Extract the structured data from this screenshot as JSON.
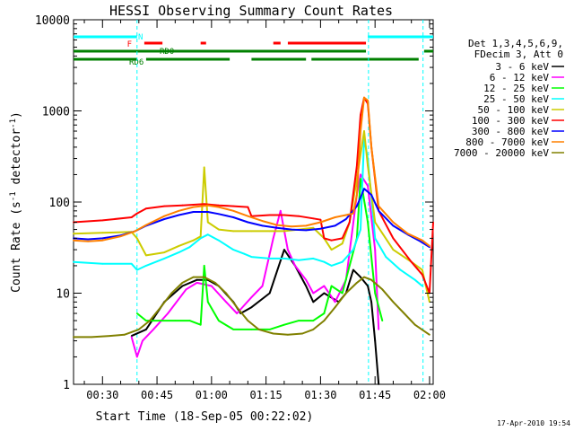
{
  "chart_data": {
    "type": "line",
    "title": "HESSI Observing Summary Count Rates",
    "xlabel": "Start Time (18-Sep-05 00:22:02)",
    "ylabel_main": "Count Rate (s",
    "ylabel_sup1": "-1",
    "ylabel_mid": " detector",
    "ylabel_sup2": "-1",
    "ylabel_end": ")",
    "y_scale": "log",
    "ylim": [
      1,
      10000
    ],
    "xlim_minutes": [
      22.03,
      121.0
    ],
    "x_tick_labels": [
      "00:30",
      "00:45",
      "01:00",
      "01:15",
      "01:30",
      "01:45",
      "02:00"
    ],
    "x_tick_minutes": [
      30,
      45,
      60,
      75,
      90,
      105,
      120
    ],
    "y_tick_labels": [
      "1",
      "10",
      "100",
      "1000",
      "10000"
    ],
    "y_tick_values": [
      1,
      10,
      100,
      1000,
      10000
    ],
    "timestamp": "17-Apr-2010 19:54",
    "legend_header": [
      "Det 1,3,4,5,6,9,",
      "FDecim 3, Att 0"
    ],
    "flags": [
      {
        "name": "N",
        "color": "#00ffff",
        "segments": [
          [
            22,
            39.5
          ],
          [
            103,
            121
          ]
        ]
      },
      {
        "name": "F",
        "color": "#ff0000",
        "segments": [
          [
            41.5,
            46.5
          ],
          [
            57,
            58.5
          ],
          [
            77,
            79
          ],
          [
            81,
            102.5
          ]
        ]
      },
      {
        "name": "RD0",
        "color": "#008000",
        "segments": [
          [
            22,
            102.5
          ],
          [
            118.5,
            121
          ]
        ]
      },
      {
        "name": "RD6",
        "color": "#008000",
        "segments": [
          [
            22,
            39.5
          ],
          [
            42,
            65
          ],
          [
            71,
            86
          ],
          [
            87.5,
            117
          ]
        ]
      }
    ],
    "vlines_minutes": [
      39.5,
      103.2,
      118.2
    ],
    "series": [
      {
        "name": "3 - 6 keV",
        "color": "#000000",
        "points": [
          [
            38,
            3.4
          ],
          [
            42,
            4
          ],
          [
            47,
            8
          ],
          [
            52,
            12
          ],
          [
            56,
            14
          ],
          [
            59,
            14
          ],
          [
            62,
            12
          ],
          [
            66,
            8
          ],
          [
            68,
            6
          ],
          [
            71,
            7
          ],
          [
            76,
            10
          ],
          [
            80,
            30
          ],
          [
            83,
            20
          ],
          [
            86,
            12
          ],
          [
            88,
            8
          ],
          [
            91,
            10
          ],
          [
            95,
            8
          ],
          [
            97,
            10
          ],
          [
            99,
            18
          ],
          [
            101,
            15
          ],
          [
            103,
            12
          ],
          [
            104,
            8
          ],
          [
            105,
            3
          ],
          [
            106,
            1
          ]
        ]
      },
      {
        "name": "6 - 12 keV",
        "color": "#ff00ff",
        "points": [
          [
            38,
            3.3
          ],
          [
            39.5,
            2
          ],
          [
            41,
            3
          ],
          [
            44,
            4
          ],
          [
            48,
            6
          ],
          [
            53,
            11
          ],
          [
            56,
            13
          ],
          [
            60,
            12
          ],
          [
            64,
            8
          ],
          [
            67,
            6
          ],
          [
            71,
            9
          ],
          [
            74,
            12
          ],
          [
            77,
            40
          ],
          [
            79,
            80
          ],
          [
            81,
            30
          ],
          [
            83,
            20
          ],
          [
            86,
            14
          ],
          [
            88,
            10
          ],
          [
            91,
            12
          ],
          [
            94,
            8
          ],
          [
            97,
            14
          ],
          [
            100,
            120
          ],
          [
            101,
            200
          ],
          [
            103,
            150
          ],
          [
            105,
            30
          ],
          [
            106,
            4
          ]
        ]
      },
      {
        "name": "12 - 25 keV",
        "color": "#00ff00",
        "points": [
          [
            39.5,
            6
          ],
          [
            42,
            5
          ],
          [
            46,
            5
          ],
          [
            50,
            5
          ],
          [
            54,
            5
          ],
          [
            57,
            4.5
          ],
          [
            58,
            20
          ],
          [
            59,
            8
          ],
          [
            62,
            5
          ],
          [
            66,
            4
          ],
          [
            71,
            4
          ],
          [
            76,
            4
          ],
          [
            80,
            4.5
          ],
          [
            84,
            5
          ],
          [
            88,
            5
          ],
          [
            91,
            6
          ],
          [
            93,
            12
          ],
          [
            96,
            10
          ],
          [
            98,
            20
          ],
          [
            100,
            40
          ],
          [
            101,
            180
          ],
          [
            103,
            60
          ],
          [
            105,
            10
          ],
          [
            107,
            5
          ]
        ]
      },
      {
        "name": "25 - 50 keV",
        "color": "#00ffff",
        "points": [
          [
            22,
            22
          ],
          [
            30,
            21
          ],
          [
            38,
            21
          ],
          [
            39.5,
            18
          ],
          [
            42,
            20
          ],
          [
            47,
            24
          ],
          [
            51,
            28
          ],
          [
            54,
            32
          ],
          [
            57,
            40
          ],
          [
            59,
            44
          ],
          [
            62,
            38
          ],
          [
            66,
            30
          ],
          [
            69,
            27
          ],
          [
            71,
            25
          ],
          [
            76,
            24
          ],
          [
            80,
            24
          ],
          [
            84,
            23
          ],
          [
            88,
            24
          ],
          [
            91,
            22
          ],
          [
            93,
            20
          ],
          [
            96,
            22
          ],
          [
            99,
            30
          ],
          [
            101,
            50
          ],
          [
            102,
            500
          ],
          [
            103,
            300
          ],
          [
            105,
            40
          ],
          [
            108,
            25
          ],
          [
            112,
            18
          ],
          [
            116,
            14
          ],
          [
            118,
            12
          ]
        ]
      },
      {
        "name": "50 - 100 keV",
        "color": "#cccc00",
        "points": [
          [
            22,
            45
          ],
          [
            30,
            46
          ],
          [
            38,
            47
          ],
          [
            39.5,
            40
          ],
          [
            42,
            26
          ],
          [
            47,
            28
          ],
          [
            51,
            33
          ],
          [
            55,
            38
          ],
          [
            57,
            42
          ],
          [
            58,
            240
          ],
          [
            59,
            60
          ],
          [
            62,
            50
          ],
          [
            66,
            48
          ],
          [
            71,
            48
          ],
          [
            76,
            48
          ],
          [
            80,
            48
          ],
          [
            84,
            50
          ],
          [
            88,
            52
          ],
          [
            91,
            40
          ],
          [
            93,
            30
          ],
          [
            96,
            35
          ],
          [
            98,
            60
          ],
          [
            100,
            180
          ],
          [
            102,
            600
          ],
          [
            103,
            250
          ],
          [
            105,
            60
          ],
          [
            110,
            30
          ],
          [
            115,
            22
          ],
          [
            118,
            18
          ],
          [
            120,
            8
          ]
        ]
      },
      {
        "name": "100 - 300 keV",
        "color": "#ff0000",
        "points": [
          [
            22,
            60
          ],
          [
            30,
            63
          ],
          [
            38,
            68
          ],
          [
            39.5,
            75
          ],
          [
            42,
            85
          ],
          [
            47,
            90
          ],
          [
            52,
            92
          ],
          [
            58,
            95
          ],
          [
            62,
            92
          ],
          [
            66,
            90
          ],
          [
            70,
            88
          ],
          [
            71,
            70
          ],
          [
            76,
            72
          ],
          [
            80,
            72
          ],
          [
            84,
            70
          ],
          [
            88,
            66
          ],
          [
            90,
            64
          ],
          [
            91,
            40
          ],
          [
            93,
            38
          ],
          [
            96,
            40
          ],
          [
            98,
            60
          ],
          [
            100,
            250
          ],
          [
            101,
            900
          ],
          [
            102,
            1400
          ],
          [
            103,
            1200
          ],
          [
            104,
            400
          ],
          [
            106,
            80
          ],
          [
            110,
            40
          ],
          [
            115,
            22
          ],
          [
            118,
            16
          ],
          [
            120,
            10
          ],
          [
            121,
            60
          ]
        ]
      },
      {
        "name": "300 - 800 keV",
        "color": "#0000ff",
        "points": [
          [
            22,
            40
          ],
          [
            26,
            39
          ],
          [
            30,
            40
          ],
          [
            35,
            43
          ],
          [
            39,
            48
          ],
          [
            42,
            55
          ],
          [
            47,
            65
          ],
          [
            51,
            72
          ],
          [
            55,
            78
          ],
          [
            59,
            78
          ],
          [
            62,
            74
          ],
          [
            66,
            68
          ],
          [
            70,
            60
          ],
          [
            74,
            55
          ],
          [
            78,
            52
          ],
          [
            82,
            50
          ],
          [
            86,
            49
          ],
          [
            90,
            51
          ],
          [
            94,
            55
          ],
          [
            97,
            65
          ],
          [
            100,
            90
          ],
          [
            102,
            140
          ],
          [
            104,
            120
          ],
          [
            106,
            80
          ],
          [
            110,
            55
          ],
          [
            114,
            44
          ],
          [
            117,
            38
          ],
          [
            120,
            32
          ]
        ]
      },
      {
        "name": "800 - 7000 keV",
        "color": "#ff8000",
        "points": [
          [
            22,
            38
          ],
          [
            26,
            37
          ],
          [
            30,
            38
          ],
          [
            35,
            42
          ],
          [
            39,
            48
          ],
          [
            42,
            56
          ],
          [
            47,
            70
          ],
          [
            51,
            80
          ],
          [
            55,
            88
          ],
          [
            59,
            92
          ],
          [
            62,
            88
          ],
          [
            66,
            80
          ],
          [
            70,
            70
          ],
          [
            74,
            62
          ],
          [
            78,
            56
          ],
          [
            82,
            54
          ],
          [
            86,
            55
          ],
          [
            90,
            60
          ],
          [
            94,
            68
          ],
          [
            97,
            72
          ],
          [
            99,
            75
          ],
          [
            100,
            120
          ],
          [
            101,
            600
          ],
          [
            102,
            1400
          ],
          [
            103,
            1300
          ],
          [
            104,
            400
          ],
          [
            106,
            90
          ],
          [
            110,
            60
          ],
          [
            114,
            45
          ],
          [
            118,
            38
          ],
          [
            120,
            33
          ]
        ]
      },
      {
        "name": "7000 - 20000 keV",
        "color": "#808000",
        "points": [
          [
            22,
            3.3
          ],
          [
            27,
            3.3
          ],
          [
            32,
            3.4
          ],
          [
            36,
            3.5
          ],
          [
            40,
            4
          ],
          [
            43,
            5
          ],
          [
            46,
            7
          ],
          [
            49,
            10
          ],
          [
            52,
            13
          ],
          [
            55,
            15
          ],
          [
            58,
            15
          ],
          [
            61,
            13
          ],
          [
            64,
            10
          ],
          [
            67,
            7
          ],
          [
            70,
            5
          ],
          [
            73,
            4
          ],
          [
            77,
            3.6
          ],
          [
            81,
            3.5
          ],
          [
            85,
            3.6
          ],
          [
            88,
            4
          ],
          [
            91,
            5
          ],
          [
            94,
            7
          ],
          [
            97,
            10
          ],
          [
            100,
            13
          ],
          [
            102,
            15
          ],
          [
            104,
            14
          ],
          [
            107,
            11
          ],
          [
            110,
            8
          ],
          [
            113,
            6
          ],
          [
            116,
            4.5
          ],
          [
            120,
            3.5
          ]
        ]
      }
    ]
  }
}
